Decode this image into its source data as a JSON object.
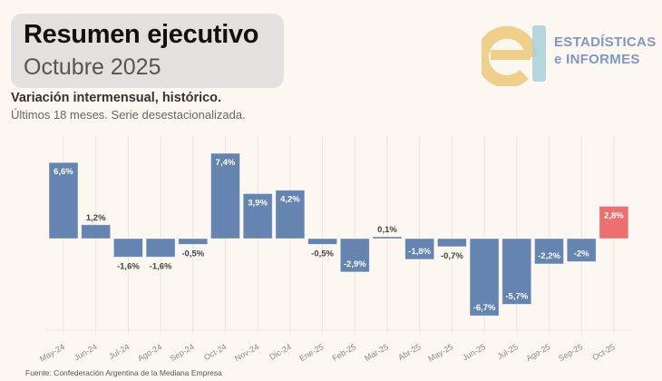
{
  "header": {
    "title": "Resumen ejecutivo",
    "period": "Octubre 2025",
    "subtitle": "Variación intermensual, histórico.",
    "description": "Últimos 18 meses. Serie desestacionalizada."
  },
  "logo": {
    "line1": "ESTADÍSTICAS",
    "line2": "e INFORMES",
    "colors": {
      "e": "#efcf8a",
      "bar": "#a9d0dc",
      "text": "#7f97c6"
    }
  },
  "footer": {
    "source": "Fuente: Confederación Argentina de la Mediana Empresa"
  },
  "colors": {
    "bar": "#6584b0",
    "highlight": "#ec7070",
    "background": "#fcf8f1",
    "grid": "#ece8e3"
  },
  "chart_data": {
    "type": "bar",
    "title": "Variación intermensual, histórico.",
    "subtitle": "Últimos 18 meses. Serie desestacionalizada.",
    "xlabel": "",
    "ylabel": "",
    "categories": [
      "May-24",
      "Jun-24",
      "Jul-24",
      "Ago-24",
      "Sep-24",
      "Oct-24",
      "Nov-24",
      "Dic-24",
      "Ene-25",
      "Feb-25",
      "Mar-25",
      "Abr-25",
      "May-25",
      "Jun-25",
      "Jul-25",
      "Ago-25",
      "Sep-25",
      "Oct-25"
    ],
    "values": [
      6.6,
      1.2,
      -1.6,
      -1.6,
      -0.5,
      7.4,
      3.9,
      4.2,
      -0.5,
      -2.9,
      0.1,
      -1.8,
      -0.7,
      -6.7,
      -5.7,
      -2.2,
      -2.0,
      2.8
    ],
    "labels": [
      "6,6%",
      "1,2%",
      "-1,6%",
      "-1,6%",
      "-0,5%",
      "7,4%",
      "3,9%",
      "4,2%",
      "-0,5%",
      "-2,9%",
      "0,1%",
      "-1,8%",
      "-0,7%",
      "-6,7%",
      "-5,7%",
      "-2,2%",
      "-2%",
      "2,8%"
    ],
    "highlight_index": 17,
    "ylim": [
      -7,
      8
    ],
    "grid": "vertical",
    "legend": "none"
  }
}
